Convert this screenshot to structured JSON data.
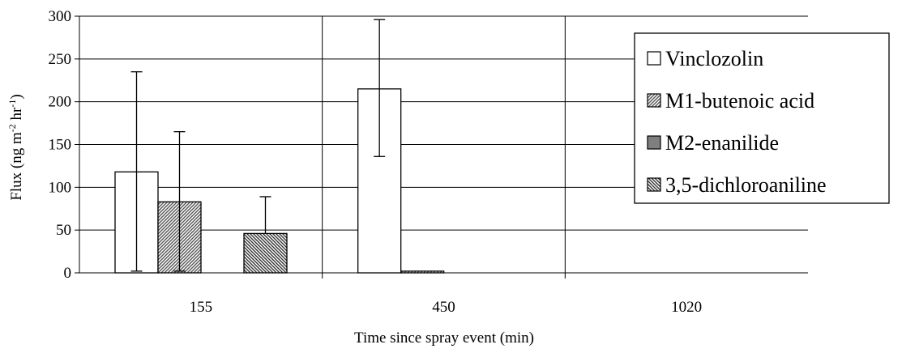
{
  "chart_data": {
    "type": "bar",
    "xlabel": "Time since spray event (min)",
    "ylabel": "Flux (ng m-2 hr-1)",
    "ylabel_parts": [
      "Flux (ng m",
      "-2",
      " hr",
      "-1",
      ")"
    ],
    "categories": [
      "155",
      "450",
      "1020"
    ],
    "ylim": [
      0,
      300
    ],
    "yticks": [
      "0",
      "50",
      "100",
      "150",
      "200",
      "250",
      "300"
    ],
    "grid": true,
    "legend_position": "top-right",
    "series": [
      {
        "name": "Vinclozolin",
        "pattern": "white",
        "values": [
          118,
          215,
          0
        ],
        "err_low": [
          2,
          136,
          null
        ],
        "err_high": [
          235,
          296,
          null
        ]
      },
      {
        "name": "M1-butenoic acid",
        "pattern": "hatch-dense",
        "values": [
          83,
          2,
          0
        ],
        "err_low": [
          2,
          null,
          null
        ],
        "err_high": [
          165,
          null,
          null
        ]
      },
      {
        "name": "M2-enanilide",
        "pattern": "gray",
        "values": [
          0,
          0,
          0
        ],
        "err_low": [
          null,
          null,
          null
        ],
        "err_high": [
          null,
          null,
          null
        ]
      },
      {
        "name": "3,5-dichloroaniline",
        "pattern": "hatch",
        "values": [
          46,
          0,
          0
        ],
        "err_low": [
          null,
          null,
          null
        ],
        "err_high": [
          89,
          null,
          null
        ]
      }
    ]
  }
}
